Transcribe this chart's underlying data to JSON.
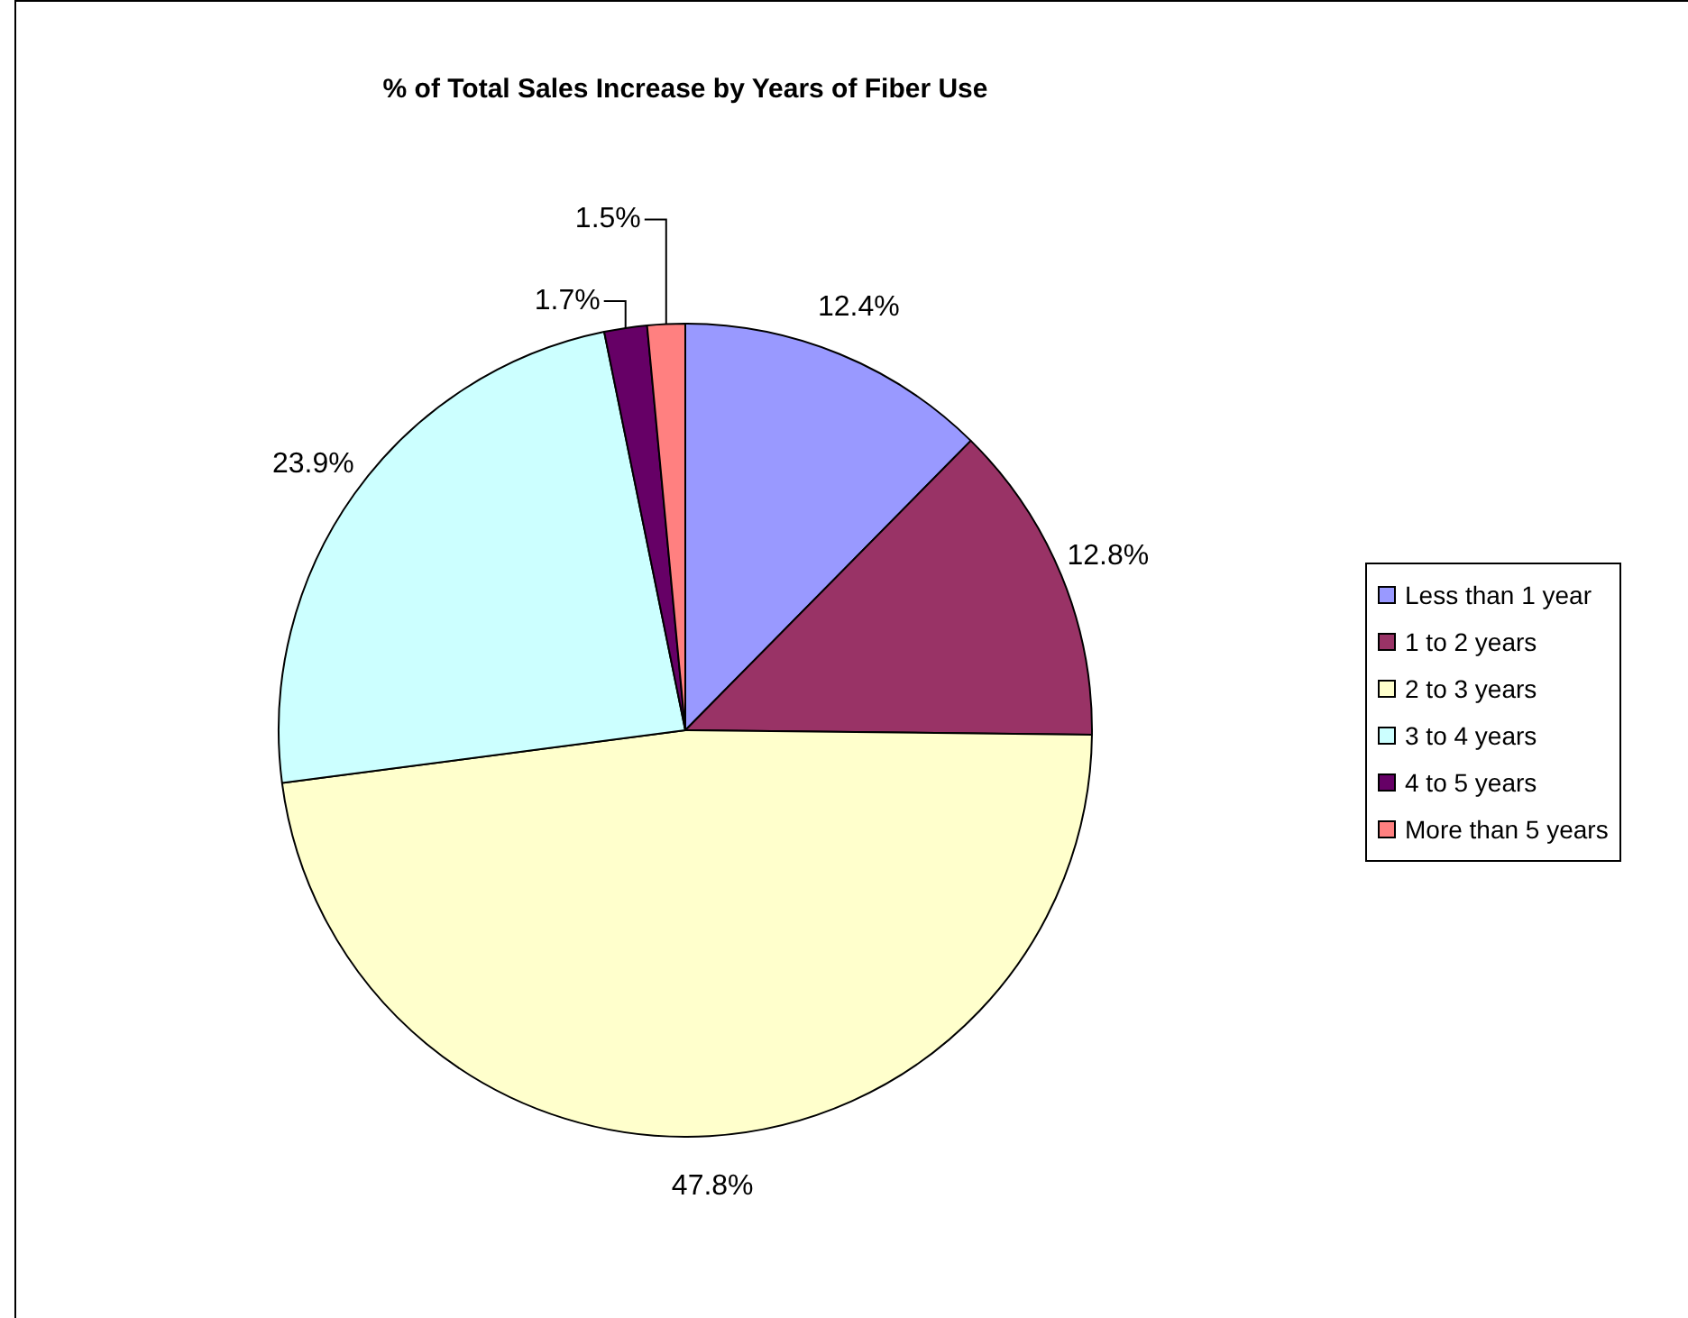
{
  "chart_data": {
    "type": "pie",
    "title": "% of Total Sales Increase by Years of Fiber Use",
    "categories": [
      "Less than 1 year",
      "1 to 2 years",
      "2 to 3 years",
      "3 to 4 years",
      "4 to 5 years",
      "More than 5 years"
    ],
    "values": [
      12.4,
      12.8,
      47.8,
      23.9,
      1.7,
      1.5
    ],
    "colors": [
      "#9999ff",
      "#993366",
      "#ffffcc",
      "#ccffff",
      "#660066",
      "#ff8080"
    ],
    "value_labels": [
      "12.4%",
      "12.8%",
      "47.8%",
      "23.9%",
      "1.7%",
      "1.5%"
    ],
    "legend": "right"
  }
}
